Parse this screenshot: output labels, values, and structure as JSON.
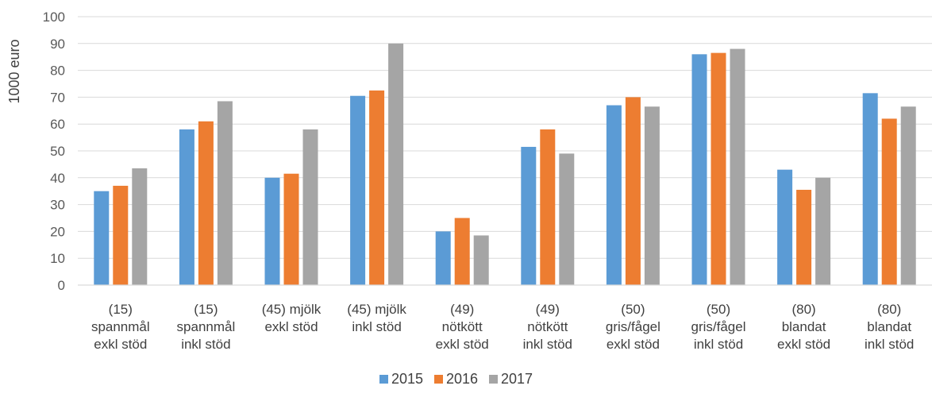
{
  "chart_data": {
    "type": "bar",
    "ylabel": "1000 euro",
    "xlabel": "",
    "ylim": [
      0,
      100
    ],
    "y_ticks": [
      0,
      10,
      20,
      30,
      40,
      50,
      60,
      70,
      80,
      90,
      100
    ],
    "grid": true,
    "legend_position": "bottom-center",
    "categories": [
      [
        "(15)",
        "spannmål",
        "exkl stöd"
      ],
      [
        "(15)",
        "spannmål",
        "inkl stöd"
      ],
      [
        "(45) mjölk",
        "exkl stöd"
      ],
      [
        "(45) mjölk",
        "inkl stöd"
      ],
      [
        "(49)",
        "nötkött",
        "exkl stöd"
      ],
      [
        "(49)",
        "nötkött",
        "inkl stöd"
      ],
      [
        "(50)",
        "gris/fågel",
        "exkl stöd"
      ],
      [
        "(50)",
        "gris/fågel",
        "inkl stöd"
      ],
      [
        "(80)",
        "blandat",
        "exkl stöd"
      ],
      [
        "(80)",
        "blandat",
        "inkl stöd"
      ]
    ],
    "series": [
      {
        "name": "2015",
        "color": "#5B9BD5",
        "values": [
          35,
          58,
          40,
          70.5,
          20,
          51.5,
          67,
          86,
          43,
          71.5
        ]
      },
      {
        "name": "2016",
        "color": "#ED7D31",
        "values": [
          37,
          61,
          41.5,
          72.5,
          25,
          58,
          70,
          86.5,
          35.5,
          62
        ]
      },
      {
        "name": "2017",
        "color": "#A5A5A5",
        "values": [
          43.5,
          68.5,
          58,
          90,
          18.5,
          49,
          66.5,
          88,
          40,
          66.5
        ]
      }
    ]
  }
}
